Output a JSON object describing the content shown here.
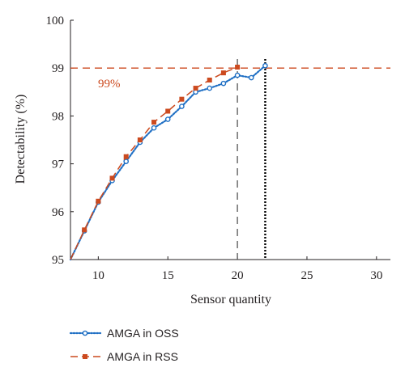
{
  "chart_data": {
    "type": "line",
    "title": "",
    "xlabel": "Sensor quantity",
    "ylabel": "Detectability (%)",
    "xlim": [
      8,
      31
    ],
    "ylim": [
      95,
      100
    ],
    "xticks": [
      10,
      15,
      20,
      25,
      30
    ],
    "yticks": [
      95,
      96,
      97,
      98,
      99,
      100
    ],
    "grid": false,
    "legend_position": "bottom-left",
    "series": [
      {
        "name": "AMGA in OSS",
        "color": "#1f6fc4",
        "line_style": "dotted",
        "marker": "circle",
        "x": [
          8,
          9,
          10,
          11,
          12,
          13,
          14,
          15,
          16,
          17,
          18,
          19,
          20,
          21,
          22
        ],
        "y": [
          95.0,
          95.6,
          96.2,
          96.65,
          97.05,
          97.45,
          97.75,
          97.93,
          98.2,
          98.5,
          98.58,
          98.68,
          98.85,
          98.8,
          99.05
        ]
      },
      {
        "name": "AMGA in RSS",
        "color": "#cc4a1f",
        "line_style": "dashed",
        "marker": "square",
        "x": [
          8,
          9,
          10,
          11,
          12,
          13,
          14,
          15,
          16,
          17,
          18,
          19,
          20
        ],
        "y": [
          95.0,
          95.62,
          96.22,
          96.7,
          97.15,
          97.5,
          97.87,
          98.1,
          98.35,
          98.58,
          98.75,
          98.9,
          99.02
        ]
      }
    ],
    "reference_lines": [
      {
        "orientation": "horizontal",
        "value": 99,
        "label": "99%",
        "color": "#cc4a1f",
        "style": "dashed"
      },
      {
        "orientation": "vertical",
        "value": 20,
        "color": "#555555",
        "style": "dashed"
      },
      {
        "orientation": "vertical",
        "value": 22,
        "color": "#000000",
        "style": "dotted"
      }
    ]
  }
}
